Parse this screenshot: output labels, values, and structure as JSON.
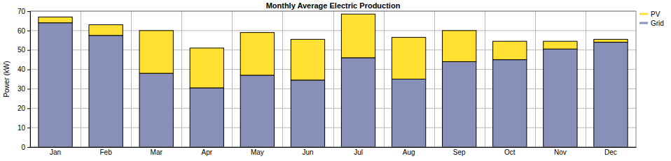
{
  "chart_data": {
    "type": "bar",
    "title": "Monthly Average Electric Production",
    "y_label": "Power (kW)",
    "categories": [
      "Jan",
      "Feb",
      "Mar",
      "Apr",
      "May",
      "Jun",
      "Jul",
      "Aug",
      "Sep",
      "Oct",
      "Nov",
      "Dec"
    ],
    "series": [
      {
        "name": "PV",
        "color": "#ffe033",
        "values": [
          3,
          5.5,
          22,
          20.5,
          22,
          21,
          22.5,
          21.5,
          16,
          9.5,
          4,
          1.5
        ]
      },
      {
        "name": "Grid",
        "color": "#8890ba",
        "values": [
          64,
          57.5,
          38,
          30.5,
          37,
          34.5,
          46,
          35,
          44,
          45,
          50.5,
          54
        ]
      }
    ],
    "stacked": true,
    "ylim": [
      0,
      70
    ],
    "yticks": [
      0,
      10,
      20,
      30,
      40,
      50,
      60,
      70
    ],
    "grid": true,
    "legend": "right"
  }
}
